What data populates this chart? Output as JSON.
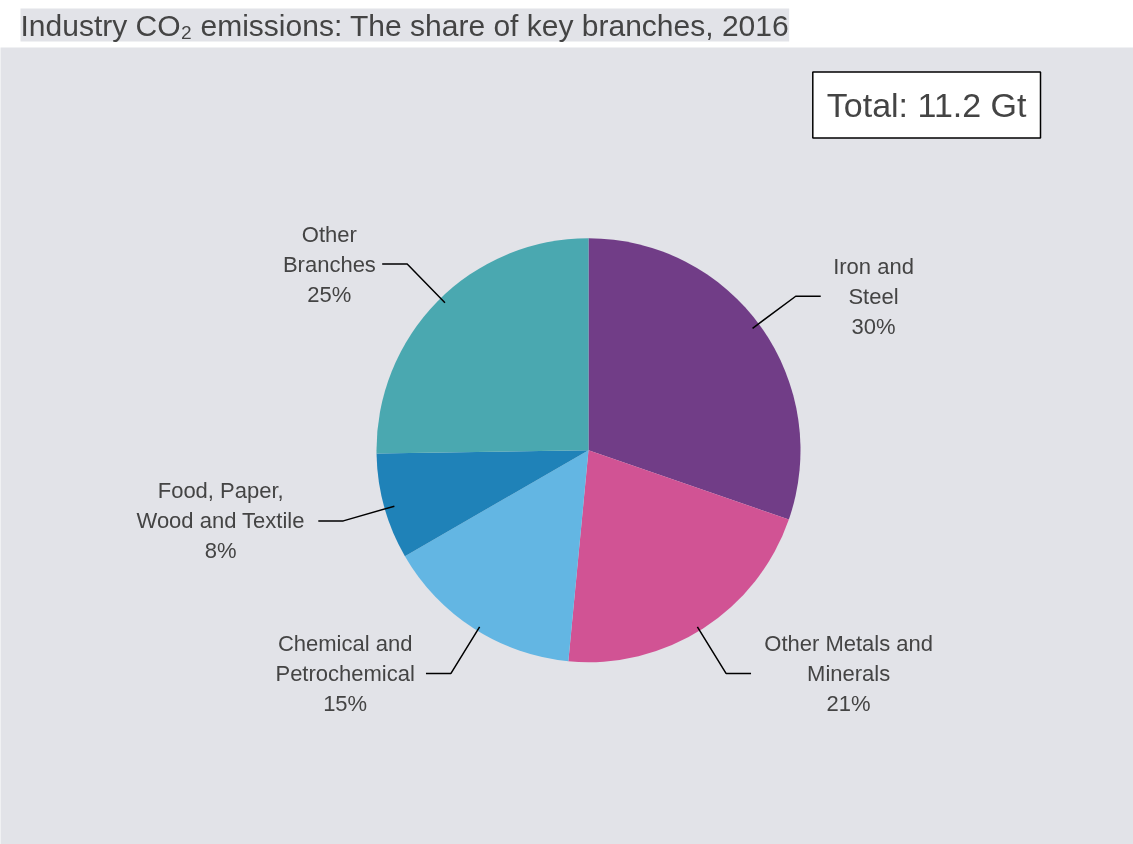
{
  "chart_data": {
    "type": "pie",
    "title": "Industry CO₂ emissions: The share of key branches, 2016",
    "categories": [
      "Iron and\nSteel",
      "Other Metals and\nMinerals",
      "Chemical and\nPetrochemical",
      "Food, Paper,\nWood and Textile",
      "Other\nBranches"
    ],
    "values": [
      30,
      21,
      15,
      8,
      25
    ],
    "value_labels": [
      "30%",
      "21%",
      "15%",
      "8%",
      "25%"
    ],
    "colors": [
      "#713d87",
      "#d15394",
      "#63b6e3",
      "#1f82b8",
      "#4aa8b0"
    ],
    "annotations": [
      "Total: 11.2 Gt"
    ]
  }
}
